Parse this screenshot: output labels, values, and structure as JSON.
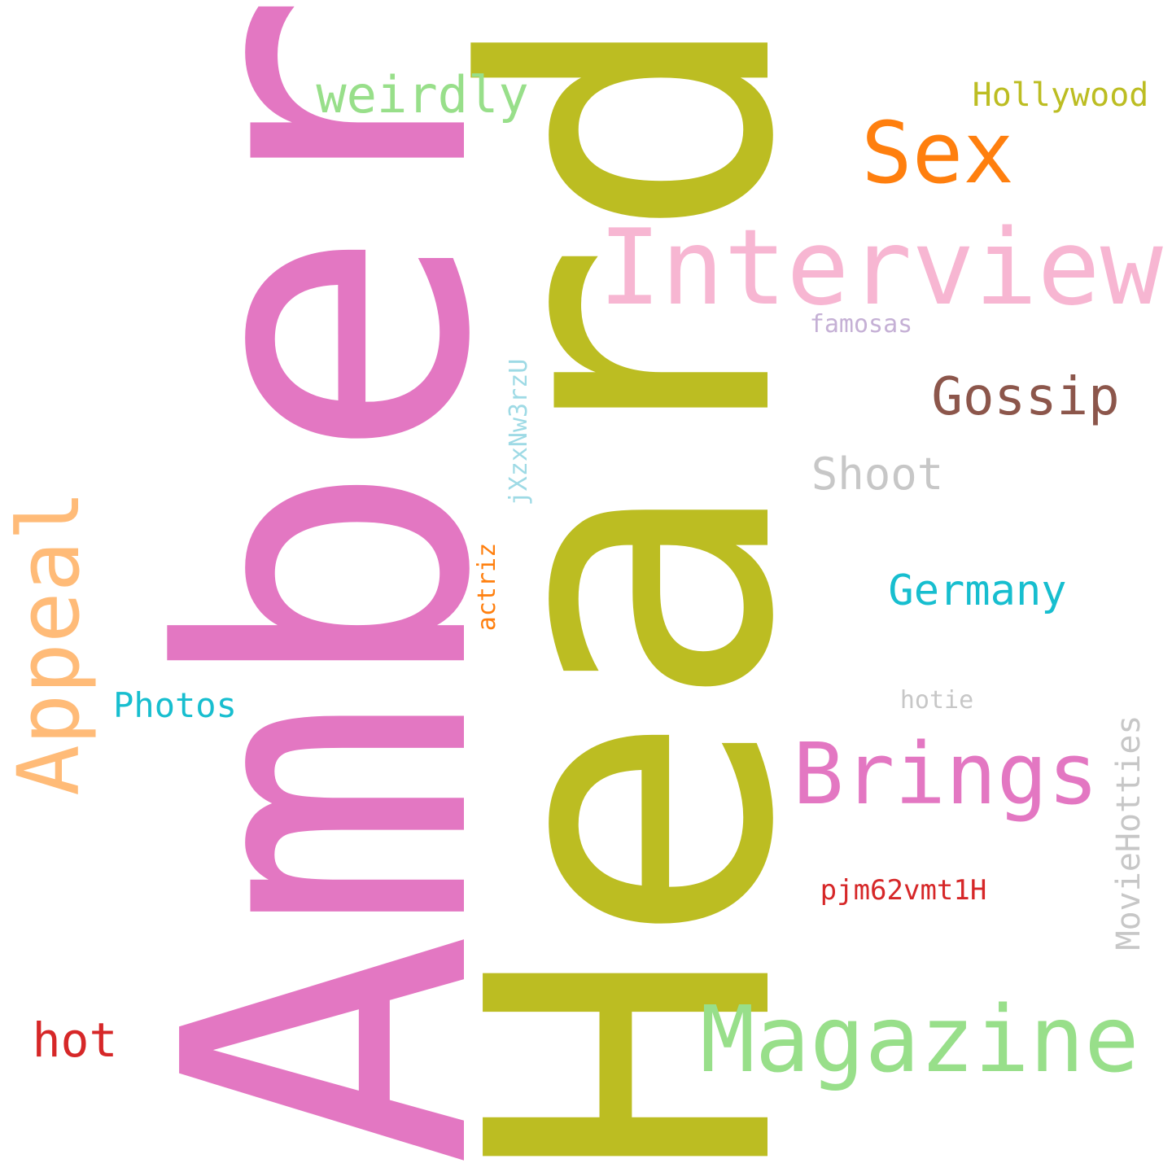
{
  "words": {
    "heard": {
      "text": "Heard",
      "color": "#bcbd22",
      "orientation": "vertical"
    },
    "amber": {
      "text": "Amber",
      "color": "#e377c2",
      "orientation": "vertical"
    },
    "interview": {
      "text": "Interview",
      "color": "#f7b6d2",
      "orientation": "horizontal"
    },
    "magazine": {
      "text": "Magazine",
      "color": "#98df8a",
      "orientation": "horizontal"
    },
    "brings": {
      "text": "Brings",
      "color": "#e377c2",
      "orientation": "horizontal"
    },
    "appeal": {
      "text": "Appeal",
      "color": "#ffbb78",
      "orientation": "vertical"
    },
    "sex": {
      "text": "Sex",
      "color": "#ff7f0e",
      "orientation": "horizontal"
    },
    "weirdly": {
      "text": "weirdly",
      "color": "#98df8a",
      "orientation": "horizontal"
    },
    "gossip": {
      "text": "Gossip",
      "color": "#8c564b",
      "orientation": "horizontal"
    },
    "shoot": {
      "text": "Shoot",
      "color": "#c7c7c7",
      "orientation": "horizontal"
    },
    "germany": {
      "text": "Germany",
      "color": "#17becf",
      "orientation": "horizontal"
    },
    "hot": {
      "text": "hot",
      "color": "#d62728",
      "orientation": "horizontal"
    },
    "hollywood": {
      "text": "Hollywood",
      "color": "#bcbd22",
      "orientation": "horizontal"
    },
    "photos": {
      "text": "Photos",
      "color": "#17becf",
      "orientation": "horizontal"
    },
    "moviehotties": {
      "text": "MovieHotties",
      "color": "#c7c7c7",
      "orientation": "vertical"
    },
    "pjm62vmt1h": {
      "text": "pjm62vmt1H",
      "color": "#d62728",
      "orientation": "horizontal"
    },
    "jxzxnw3rzu": {
      "text": "jXzxNw3rzU",
      "color": "#9edae5",
      "orientation": "vertical"
    },
    "actriz": {
      "text": "actriz",
      "color": "#ff7f0e",
      "orientation": "vertical"
    },
    "famosas": {
      "text": "famosas",
      "color": "#c5b0d5",
      "orientation": "horizontal"
    },
    "hotie": {
      "text": "hotie",
      "color": "#c7c7c7",
      "orientation": "horizontal"
    }
  }
}
